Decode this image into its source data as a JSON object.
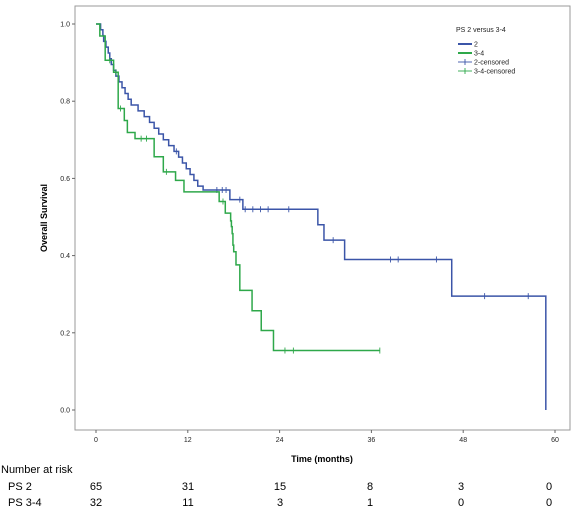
{
  "chart_data": {
    "type": "line",
    "subtype": "kaplan-meier",
    "title": "",
    "xlabel": "Time (months)",
    "ylabel": "Overall Survival",
    "xlim": [
      0,
      62
    ],
    "ylim": [
      0,
      1.02
    ],
    "x_ticks": [
      0,
      12,
      24,
      36,
      48,
      60
    ],
    "y_ticks": [
      0.0,
      0.2,
      0.4,
      0.6,
      0.8,
      1.0
    ],
    "y_tick_labels": [
      "0.0",
      "0.2",
      "0.4",
      "0.6",
      "0.8",
      "1.0"
    ],
    "legend": {
      "title": "PS 2 versus 3-4",
      "placement": "top-right",
      "entries": [
        "2",
        "3-4",
        "2-censored",
        "3-4-censored"
      ]
    },
    "series": [
      {
        "name": "2",
        "color": "#3b55a8",
        "steps": [
          [
            0,
            1.0
          ],
          [
            0.6,
            0.985
          ],
          [
            0.9,
            0.97
          ],
          [
            1.0,
            0.955
          ],
          [
            1.3,
            0.94
          ],
          [
            1.6,
            0.925
          ],
          [
            1.8,
            0.91
          ],
          [
            2.0,
            0.895
          ],
          [
            2.3,
            0.88
          ],
          [
            2.6,
            0.865
          ],
          [
            3.0,
            0.85
          ],
          [
            3.4,
            0.835
          ],
          [
            3.8,
            0.82
          ],
          [
            4.2,
            0.805
          ],
          [
            4.6,
            0.79
          ],
          [
            5.5,
            0.775
          ],
          [
            6.3,
            0.76
          ],
          [
            7.0,
            0.745
          ],
          [
            7.6,
            0.73
          ],
          [
            8.2,
            0.715
          ],
          [
            8.8,
            0.7
          ],
          [
            9.5,
            0.685
          ],
          [
            10.2,
            0.67
          ],
          [
            10.8,
            0.655
          ],
          [
            11.3,
            0.64
          ],
          [
            11.8,
            0.625
          ],
          [
            12.3,
            0.61
          ],
          [
            12.8,
            0.595
          ],
          [
            13.3,
            0.58
          ],
          [
            14.0,
            0.57
          ],
          [
            17.5,
            0.545
          ],
          [
            19.2,
            0.52
          ],
          [
            29.0,
            0.48
          ],
          [
            29.8,
            0.44
          ],
          [
            32.5,
            0.39
          ],
          [
            46.5,
            0.295
          ],
          [
            58.8,
            0.0
          ]
        ],
        "end_x": 58.8,
        "censored": [
          [
            10.5,
            0.67
          ],
          [
            15.8,
            0.57
          ],
          [
            16.5,
            0.57
          ],
          [
            17.0,
            0.57
          ],
          [
            18.8,
            0.545
          ],
          [
            19.5,
            0.52
          ],
          [
            20.5,
            0.52
          ],
          [
            21.5,
            0.52
          ],
          [
            22.5,
            0.52
          ],
          [
            25.2,
            0.52
          ],
          [
            31.0,
            0.44
          ],
          [
            38.5,
            0.39
          ],
          [
            39.5,
            0.39
          ],
          [
            44.5,
            0.39
          ],
          [
            50.8,
            0.295
          ],
          [
            56.5,
            0.295
          ]
        ]
      },
      {
        "name": "3-4",
        "color": "#2ea84a",
        "steps": [
          [
            0,
            1.0
          ],
          [
            0.5,
            0.969
          ],
          [
            1.2,
            0.906
          ],
          [
            2.3,
            0.875
          ],
          [
            2.9,
            0.781
          ],
          [
            3.7,
            0.75
          ],
          [
            4.1,
            0.719
          ],
          [
            5.1,
            0.703
          ],
          [
            7.6,
            0.656
          ],
          [
            8.8,
            0.617
          ],
          [
            10.4,
            0.595
          ],
          [
            11.5,
            0.565
          ],
          [
            16.1,
            0.54
          ],
          [
            16.9,
            0.51
          ],
          [
            17.6,
            0.49
          ],
          [
            17.7,
            0.475
          ],
          [
            17.8,
            0.457
          ],
          [
            17.9,
            0.427
          ],
          [
            18.0,
            0.41
          ],
          [
            18.3,
            0.376
          ],
          [
            18.8,
            0.31
          ],
          [
            20.4,
            0.257
          ],
          [
            21.6,
            0.206
          ],
          [
            23.2,
            0.154
          ]
        ],
        "end_x": 37.1,
        "censored": [
          [
            1.8,
            0.906
          ],
          [
            2.6,
            0.875
          ],
          [
            3.2,
            0.781
          ],
          [
            5.9,
            0.703
          ],
          [
            6.6,
            0.703
          ],
          [
            9.2,
            0.617
          ],
          [
            16.6,
            0.54
          ],
          [
            24.7,
            0.154
          ],
          [
            25.8,
            0.154
          ],
          [
            37.1,
            0.154
          ]
        ]
      }
    ],
    "risk_table": {
      "heading": "Number at risk",
      "rows": [
        {
          "label": "PS 2",
          "values": [
            "65",
            "31",
            "15",
            "8",
            "3",
            "0"
          ]
        },
        {
          "label": "PS 3-4",
          "values": [
            "32",
            "11",
            "3",
            "1",
            "0",
            "0"
          ]
        }
      ]
    }
  }
}
